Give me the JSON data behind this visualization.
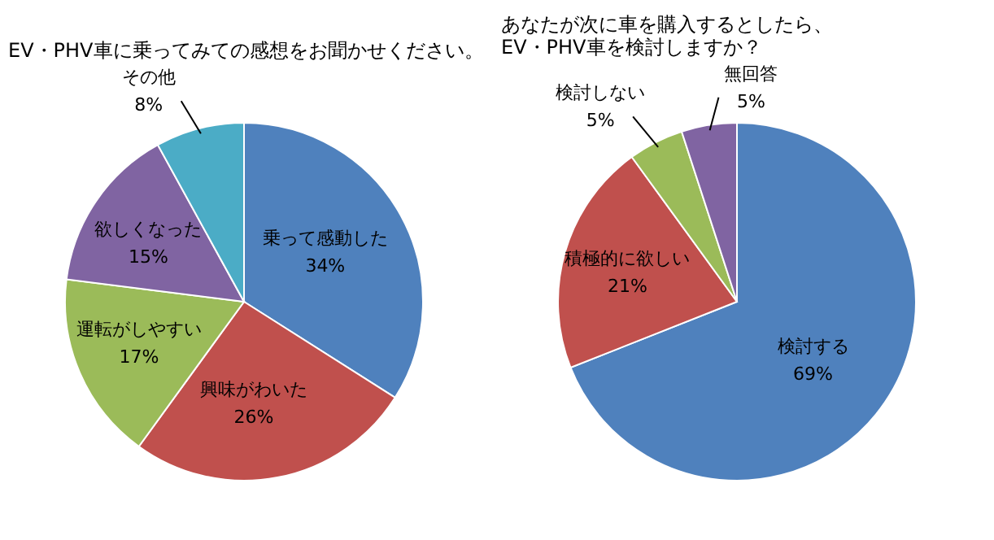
{
  "chart_data": [
    {
      "type": "pie",
      "title": "EV・PHV車に乗ってみての感想をお聞かせください。",
      "categories": [
        "乗って感動した",
        "興味がわいた",
        "運転がしやすい",
        "欲しくなった",
        "その他"
      ],
      "values": [
        34,
        26,
        17,
        15,
        8
      ],
      "value_labels": [
        "34%",
        "26%",
        "17%",
        "15%",
        "8%"
      ],
      "colors": [
        "#4f81bd",
        "#c0504d",
        "#9bbb59",
        "#8064a2",
        "#4bacc6"
      ]
    },
    {
      "type": "pie",
      "title": "あなたが次に車を購入するとしたら、\nEV・PHV車を検討しますか？",
      "categories": [
        "検討する",
        "積極的に欲しい",
        "検討しない",
        "無回答"
      ],
      "values": [
        69,
        21,
        5,
        5
      ],
      "value_labels": [
        "69%",
        "21%",
        "5%",
        "5%"
      ],
      "colors": [
        "#4f81bd",
        "#c0504d",
        "#9bbb59",
        "#8064a2"
      ]
    }
  ]
}
